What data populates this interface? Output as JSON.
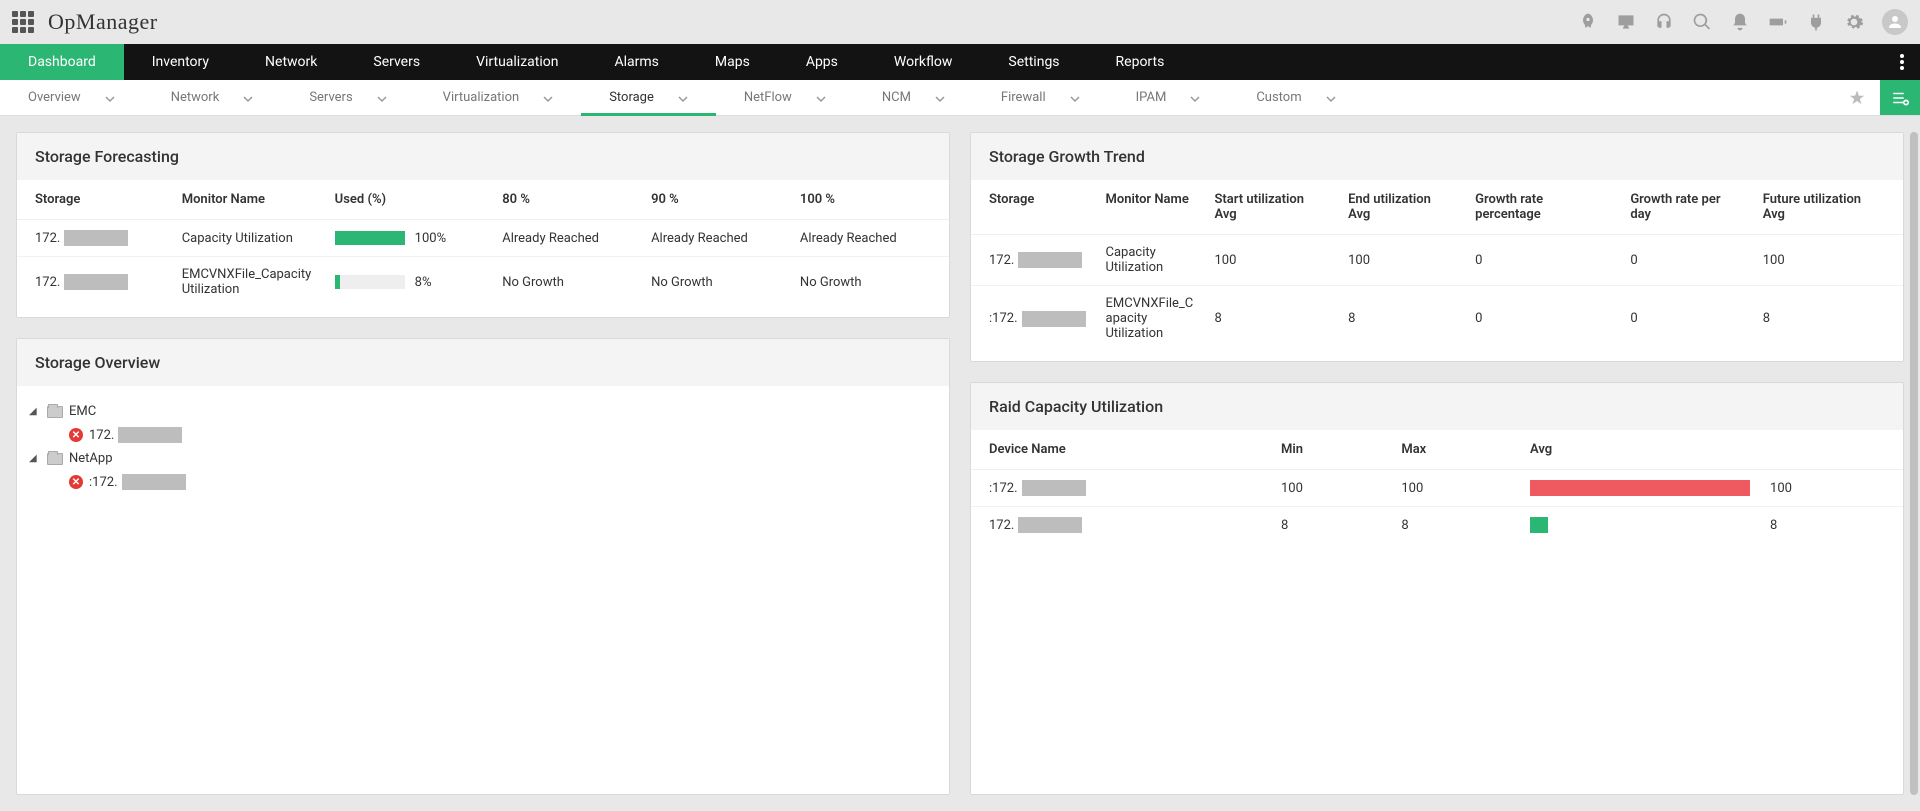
{
  "app": {
    "title": "OpManager"
  },
  "mainnav": {
    "items": [
      "Dashboard",
      "Inventory",
      "Network",
      "Servers",
      "Virtualization",
      "Alarms",
      "Maps",
      "Apps",
      "Workflow",
      "Settings",
      "Reports"
    ],
    "active_index": 0
  },
  "subtabs": {
    "items": [
      "Overview",
      "Network",
      "Servers",
      "Virtualization",
      "Storage",
      "NetFlow",
      "NCM",
      "Firewall",
      "IPAM",
      "Custom"
    ],
    "active_index": 4
  },
  "colors": {
    "accent": "#2bb673",
    "bar_full": "#ef5a60",
    "bar_low": "#2bb673",
    "mask": "#bdbdbd"
  },
  "forecasting": {
    "title": "Storage Forecasting",
    "columns": [
      "Storage",
      "Monitor Name",
      "Used (%)",
      "80 %",
      "90 %",
      "100 %"
    ],
    "rows": [
      {
        "ip_prefix": "172.",
        "monitor": "Capacity Utilization",
        "used_pct": 100,
        "used_label": "100%",
        "c80": "Already Reached",
        "c90": "Already Reached",
        "c100": "Already Reached"
      },
      {
        "ip_prefix": "172.",
        "monitor": "EMCVNXFile_Capacity Utilization",
        "used_pct": 8,
        "used_label": "8%",
        "c80": "No Growth",
        "c90": "No Growth",
        "c100": "No Growth"
      }
    ]
  },
  "overview": {
    "title": "Storage Overview",
    "nodes": [
      {
        "label": "EMC",
        "children": [
          {
            "ip_prefix": "172."
          }
        ]
      },
      {
        "label": "NetApp",
        "children": [
          {
            "ip_prefix": ":172."
          }
        ]
      }
    ]
  },
  "growth": {
    "title": "Storage Growth Trend",
    "columns": [
      "Storage",
      "Monitor Name",
      "Start utilization Avg",
      "End utilization Avg",
      "Growth rate percentage",
      "Growth rate per day",
      "Future utilization Avg"
    ],
    "rows": [
      {
        "ip_prefix": "172.",
        "monitor": "Capacity Utilization",
        "start": "100",
        "end": "100",
        "rate_pct": "0",
        "rate_day": "0",
        "future": "100"
      },
      {
        "ip_prefix": ":172.",
        "monitor": "EMCVNXFile_Capacity Utilization",
        "start": "8",
        "end": "8",
        "rate_pct": "0",
        "rate_day": "0",
        "future": "8"
      }
    ]
  },
  "raid": {
    "title": "Raid Capacity Utilization",
    "columns": [
      "Device Name",
      "Min",
      "Max",
      "Avg"
    ],
    "rows": [
      {
        "ip_prefix": ":172.",
        "min": "100",
        "max": "100",
        "avg": "100",
        "bar_pct": 100,
        "bar_color": "#ef5a60"
      },
      {
        "ip_prefix": "172.",
        "min": "8",
        "max": "8",
        "avg": "8",
        "bar_pct": 8,
        "bar_color": "#2bb673"
      }
    ]
  }
}
